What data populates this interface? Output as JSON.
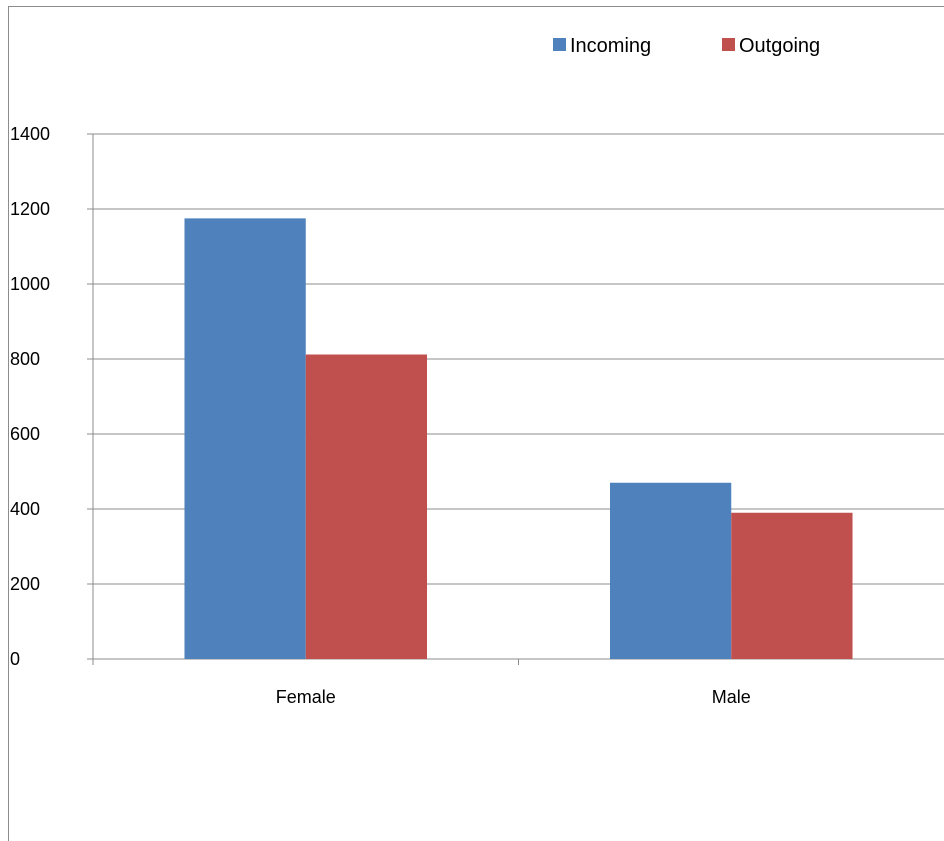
{
  "chart_data": {
    "type": "bar",
    "categories": [
      "Female",
      "Male"
    ],
    "series": [
      {
        "name": "Incoming",
        "color": "#4f81bd",
        "values": [
          1175,
          470
        ]
      },
      {
        "name": "Outgoing",
        "color": "#c0504d",
        "values": [
          812,
          390
        ]
      }
    ],
    "ylim": [
      0,
      1400
    ],
    "yticks": [
      0,
      200,
      400,
      600,
      800,
      1000,
      1200,
      1400
    ],
    "grid": true,
    "legend_position": "top-right",
    "gridline_color": "#8c8c8c"
  }
}
